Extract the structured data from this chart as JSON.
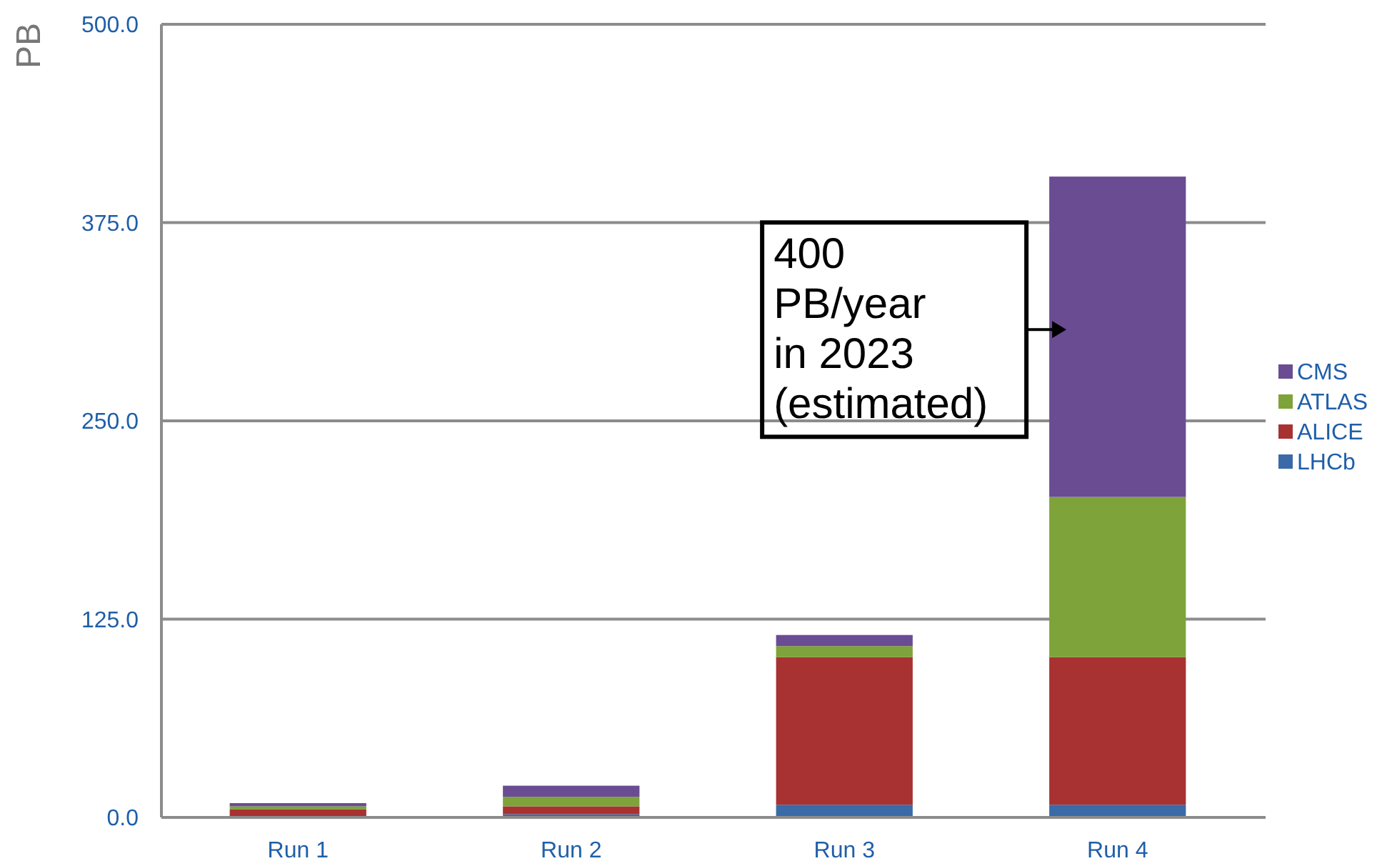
{
  "chart_data": {
    "type": "bar",
    "stacked": true,
    "ylabel": "PB",
    "categories": [
      "Run 1",
      "Run 2",
      "Run 3",
      "Run 4"
    ],
    "series": [
      {
        "name": "LHCb",
        "color": "#3a6aa8",
        "values": [
          0,
          2,
          8,
          8
        ]
      },
      {
        "name": "ALICE",
        "color": "#a83232",
        "values": [
          5,
          5,
          93,
          93
        ]
      },
      {
        "name": "ATLAS",
        "color": "#7ea33a",
        "values": [
          2,
          6,
          7,
          101
        ]
      },
      {
        "name": "CMS",
        "color": "#6a4c93",
        "values": [
          2,
          7,
          7,
          202
        ]
      }
    ],
    "ylim": [
      0,
      500
    ],
    "yticks": [
      {
        "value": 0,
        "label": "0.0"
      },
      {
        "value": 125,
        "label": "125.0"
      },
      {
        "value": 250,
        "label": "250.0"
      },
      {
        "value": 375,
        "label": "375.0"
      },
      {
        "value": 500,
        "label": "500.0"
      }
    ],
    "grid": "y",
    "legend": "right",
    "annotations": [
      "400 PB/year in 2023 (estimated)"
    ]
  }
}
